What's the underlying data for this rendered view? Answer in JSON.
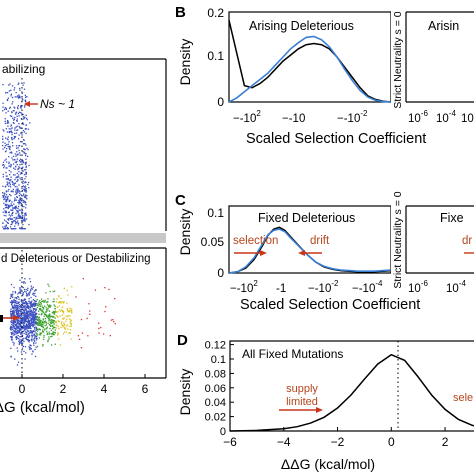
{
  "panel_a": {
    "top_label": "abilizing",
    "bottom_label": "d Deleterious or Destabilizing",
    "ns_annotation": "Ns ~ 1",
    "xlabel": "ΔG (kcal/mol)",
    "xticks": [
      "0",
      "2",
      "4",
      "6"
    ]
  },
  "panel_b": {
    "letter": "B",
    "left_title": "Arising Deleterious",
    "right_title": "Arisin",
    "ylabel": "Density",
    "yticks": [
      "0.2",
      "0.1",
      "0"
    ],
    "xlabel": "Scaled Selection Coefficient",
    "xticks_left": [
      "-10",
      "-10",
      "-10"
    ],
    "xticks_left_exp": [
      "2",
      "",
      "-2"
    ],
    "xticks_right": [
      "10",
      "10",
      "10"
    ],
    "xticks_right_exp": [
      "-6",
      "-4",
      "-2"
    ],
    "divider_label": "Strict Neutrality s = 0"
  },
  "panel_c": {
    "letter": "C",
    "left_title": "Fixed Deleterious",
    "right_title": "Fixe",
    "ylabel": "Density",
    "yticks": [
      "0.1",
      "0.05",
      "0"
    ],
    "xlabel": "Scaled Selection Coefficient",
    "selection_label": "selection",
    "drift_label": "drift",
    "drift_label_right": "dr",
    "xticks_left": [
      "-10",
      "-1",
      "-10",
      "-10"
    ],
    "xticks_left_exp": [
      "2",
      "",
      "-2",
      "-4"
    ],
    "xticks_right": [
      "10",
      "10"
    ],
    "xticks_right_exp": [
      "-6",
      "-4"
    ],
    "divider_label": "Strict Neutrality s = 0"
  },
  "panel_d": {
    "letter": "D",
    "title": "All Fixed Mutations",
    "ylabel": "Density",
    "yticks": [
      "0.12",
      "0.1",
      "0.08",
      "0.06",
      "0.04",
      "0.02",
      "0"
    ],
    "xticks": [
      "-6",
      "-4",
      "-2",
      "0",
      "2"
    ],
    "xlabel": "ΔΔG (kcal/mol)",
    "supply_label": "supply\nlimited",
    "right_partial_label": "sele"
  },
  "colors": {
    "black_curve": "#000000",
    "blue_curve": "#3a7fd6",
    "scatter_blue": "#3b4fc0",
    "scatter_green": "#3aa02e",
    "scatter_yellow": "#d8c21c",
    "scatter_red": "#d8312a",
    "arrow_red": "#c8351a",
    "label_brown": "#b5461c"
  },
  "chart_data": [
    {
      "type": "scatter",
      "panel": "A (bottom, cropped)",
      "xlabel": "ΔΔG (kcal/mol)",
      "xlim": [
        -0.3,
        6.8
      ],
      "series": [
        {
          "color": "blue",
          "x_range": [
            -0.6,
            0.7
          ]
        },
        {
          "color": "green",
          "x_range": [
            0.7,
            1.6
          ]
        },
        {
          "color": "yellow",
          "x_range": [
            1.6,
            2.4
          ]
        },
        {
          "color": "red",
          "x_range": [
            2.4,
            4.6
          ]
        }
      ]
    },
    {
      "type": "line",
      "panel": "B",
      "title": "Arising Deleterious",
      "ylabel": "Density",
      "ylim": [
        0,
        0.22
      ],
      "x": [
        -2.9,
        -2.7,
        -2.5,
        -2.3,
        -2.1,
        -1.9,
        -1.7,
        -1.5,
        -1.3,
        -1.1,
        -0.9,
        -0.7,
        -0.5,
        -0.3,
        -0.1,
        0.1,
        0.3,
        0.5,
        0.7,
        0.9,
        1.1,
        1.3
      ],
      "x_note": "log10(-Ns)",
      "series": [
        {
          "name": "",
          "color": "black",
          "values": [
            0.2,
            0.12,
            0.04,
            0.035,
            0.045,
            0.06,
            0.08,
            0.1,
            0.115,
            0.13,
            0.14,
            0.143,
            0.14,
            0.13,
            0.11,
            0.085,
            0.06,
            0.035,
            0.015,
            0.006,
            0.002,
            0.0
          ]
        },
        {
          "name": "",
          "color": "blue",
          "values": [
            0.0,
            0.01,
            0.025,
            0.04,
            0.055,
            0.07,
            0.09,
            0.11,
            0.13,
            0.145,
            0.158,
            0.16,
            0.152,
            0.135,
            0.11,
            0.08,
            0.052,
            0.028,
            0.012,
            0.004,
            0.001,
            0.0
          ]
        }
      ]
    },
    {
      "type": "line",
      "panel": "C",
      "title": "Fixed Deleterious",
      "ylabel": "Density",
      "ylim": [
        0,
        0.11
      ],
      "x": [
        -2.2,
        -1.9,
        -1.6,
        -1.3,
        -1.0,
        -0.8,
        -0.6,
        -0.4,
        -0.2,
        0.0,
        0.3,
        0.6,
        0.9,
        1.2,
        1.5,
        1.8,
        2.1,
        2.4,
        2.7,
        3.0,
        3.3,
        3.6
      ],
      "x_note": "-log10(-Ns)",
      "series": [
        {
          "name": "",
          "color": "black",
          "values": [
            0.0,
            0.002,
            0.008,
            0.022,
            0.045,
            0.062,
            0.072,
            0.075,
            0.07,
            0.06,
            0.045,
            0.03,
            0.018,
            0.01,
            0.006,
            0.004,
            0.003,
            0.002,
            0.002,
            0.002,
            0.003,
            0.004
          ]
        },
        {
          "name": "",
          "color": "blue",
          "values": [
            0.0,
            0.002,
            0.01,
            0.025,
            0.048,
            0.063,
            0.07,
            0.072,
            0.068,
            0.058,
            0.044,
            0.03,
            0.018,
            0.011,
            0.007,
            0.005,
            0.004,
            0.003,
            0.003,
            0.003,
            0.004,
            0.005
          ]
        }
      ]
    },
    {
      "type": "line",
      "panel": "D",
      "title": "All Fixed Mutations",
      "xlabel": "ΔΔG (kcal/mol)",
      "ylabel": "Density",
      "xlim": [
        -6,
        3.3
      ],
      "ylim": [
        0,
        0.125
      ],
      "x": [
        -6,
        -5,
        -4,
        -3.5,
        -3,
        -2.5,
        -2,
        -1.5,
        -1,
        -0.5,
        0,
        0.5,
        1,
        1.5,
        2,
        2.5,
        3,
        3.3
      ],
      "series": [
        {
          "name": "",
          "color": "black",
          "values": [
            0.0,
            0.0008,
            0.003,
            0.006,
            0.011,
            0.019,
            0.032,
            0.05,
            0.072,
            0.093,
            0.106,
            0.098,
            0.075,
            0.05,
            0.03,
            0.016,
            0.008,
            0.005
          ]
        }
      ]
    }
  ]
}
